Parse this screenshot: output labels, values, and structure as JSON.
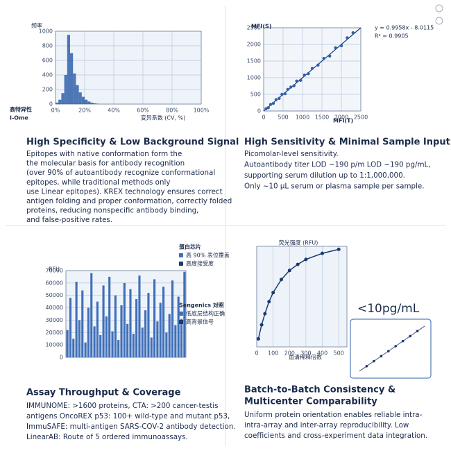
{
  "panels": [
    {
      "title": "High Specificity & Low Background Signal",
      "body": [
        "Epitopes with native conformation form the",
        "the molecular basis for antibody recognition",
        "(over 90% of autoantibody recognize conformational",
        "epitopes, while traditional methods only",
        "use Linear epitopes). KREX technology ensures correct",
        "antigen folding and proper conformation, correctly folded",
        "proteins, reducing nonspecific antibody binding,",
        "and false-positive rates."
      ],
      "chart": {
        "type": "histogram",
        "y_label": "频率",
        "x_label": "变异系数 (CV, %)",
        "legend": [
          "高特异性",
          "I-Ome"
        ],
        "color": "#2f5fa8",
        "bins": [
          0,
          2,
          4,
          6,
          8,
          10,
          12,
          14,
          16,
          18,
          20,
          22,
          24,
          26,
          28,
          30
        ],
        "values": [
          20,
          60,
          150,
          400,
          950,
          700,
          420,
          260,
          160,
          100,
          60,
          35,
          20,
          10,
          5
        ],
        "xlim": [
          0,
          100
        ],
        "ylim": [
          0,
          1000
        ],
        "xticks": [
          {
            "value": 0,
            "label": "0%"
          },
          {
            "value": 20,
            "label": "20%"
          },
          {
            "value": 40,
            "label": "40%"
          },
          {
            "value": 60,
            "label": "60%"
          },
          {
            "value": 80,
            "label": "80%"
          },
          {
            "value": 100,
            "label": "100%"
          }
        ],
        "yticks": [
          0,
          200,
          400,
          600,
          800,
          1000
        ]
      }
    },
    {
      "title": "High Sensitivity & Minimal Sample Input",
      "body": [
        "Picomolar-level sensitivity.",
        "Autoantibody titer LOD ~190 p/m LOD ~190 pg/mL,",
        "supporting serum dilution up to 1:1,000,000.",
        "Only ~10 μL serum or plasma sample per sample."
      ],
      "chart": {
        "type": "scatter",
        "y_label": "MFI(S)",
        "x_label": "MFI(T)",
        "equation": "y = 0.9958x - 8.0115",
        "r2": "R² = 0.9905",
        "color": "#2f5fa8",
        "x": [
          60,
          120,
          180,
          250,
          320,
          400,
          470,
          550,
          620,
          700,
          780,
          850,
          950,
          1050,
          1150,
          1250,
          1400,
          1550,
          1700,
          1850,
          2000,
          2150,
          2300
        ],
        "y": [
          70,
          100,
          200,
          230,
          340,
          380,
          500,
          520,
          650,
          720,
          760,
          900,
          920,
          1080,
          1120,
          1280,
          1380,
          1580,
          1650,
          1900,
          1960,
          2200,
          2350
        ],
        "xlim": [
          0,
          2500
        ],
        "ylim": [
          0,
          2500
        ],
        "xticks": [
          0,
          500,
          1000,
          1500,
          2000,
          2500
        ],
        "yticks": [
          0,
          500,
          1000,
          1500,
          2000,
          2500
        ]
      }
    },
    {
      "title": "Assay Throughput & Coverage",
      "body": [
        "IMMUNOME: >1600 proteins, CTA: >200 cancer-testis",
        "antigens OncoREX p53: 100+ wild-type and mutant p53,",
        "ImmuSAFE: multi-antigen SARS-COV-2 antibody detection.",
        "LinearAB: Route of 5 ordered immunoassays."
      ],
      "chart": {
        "type": "bar",
        "y_label": "RFU",
        "color": "#3f6fb8",
        "legend1": [
          "蛋白芯片",
          "高 90% 表位覆盖",
          "高度接受度"
        ],
        "legend2": [
          "Sengenics 对照",
          "低底层结构正确",
          "高背景信号"
        ],
        "values": [
          22000,
          48000,
          15000,
          61000,
          30000,
          54000,
          12000,
          40000,
          68000,
          25000,
          45000,
          18000,
          58000,
          33000,
          65000,
          21000,
          50000,
          14000,
          42000,
          60000,
          27000,
          55000,
          19000,
          47000,
          66000,
          24000,
          38000,
          52000,
          16000,
          63000,
          29000,
          44000,
          57000,
          20000,
          35000,
          62000,
          26000,
          49000,
          31000,
          69000
        ],
        "ylim": [
          0,
          70000
        ],
        "yticks": [
          0,
          10000,
          20000,
          30000,
          40000,
          50000,
          60000,
          70000
        ]
      }
    },
    {
      "title": [
        "Batch-to-Batch Consistency &",
        "Multicenter Comparability"
      ],
      "body": [
        "Uniform protein orientation enables reliable intra-",
        "intra-array and inter-array reproducibility. Low",
        "coefficients and cross-experiment data integration."
      ],
      "chart": {
        "type": "line",
        "y_label": "荧光强度 (RFU)",
        "x_label": "血清稀释倍数",
        "callout": "<10pg/mL",
        "color": "#1b3a70",
        "x": [
          10,
          30,
          50,
          75,
          100,
          150,
          200,
          250,
          300,
          400,
          500
        ],
        "y": [
          8,
          22,
          33,
          45,
          54,
          67,
          76,
          82,
          87,
          93,
          97
        ],
        "xlim": [
          0,
          550
        ],
        "ylim": [
          0,
          100
        ],
        "xticks": [
          0,
          100,
          200,
          300,
          400,
          500
        ],
        "inset": {
          "x": [
            1,
            2,
            3,
            4,
            5,
            6,
            7,
            8
          ],
          "y": [
            1,
            2,
            3,
            4,
            5,
            6,
            7,
            8
          ],
          "xlim": [
            0,
            9
          ],
          "ylim": [
            0,
            9
          ]
        }
      }
    }
  ]
}
